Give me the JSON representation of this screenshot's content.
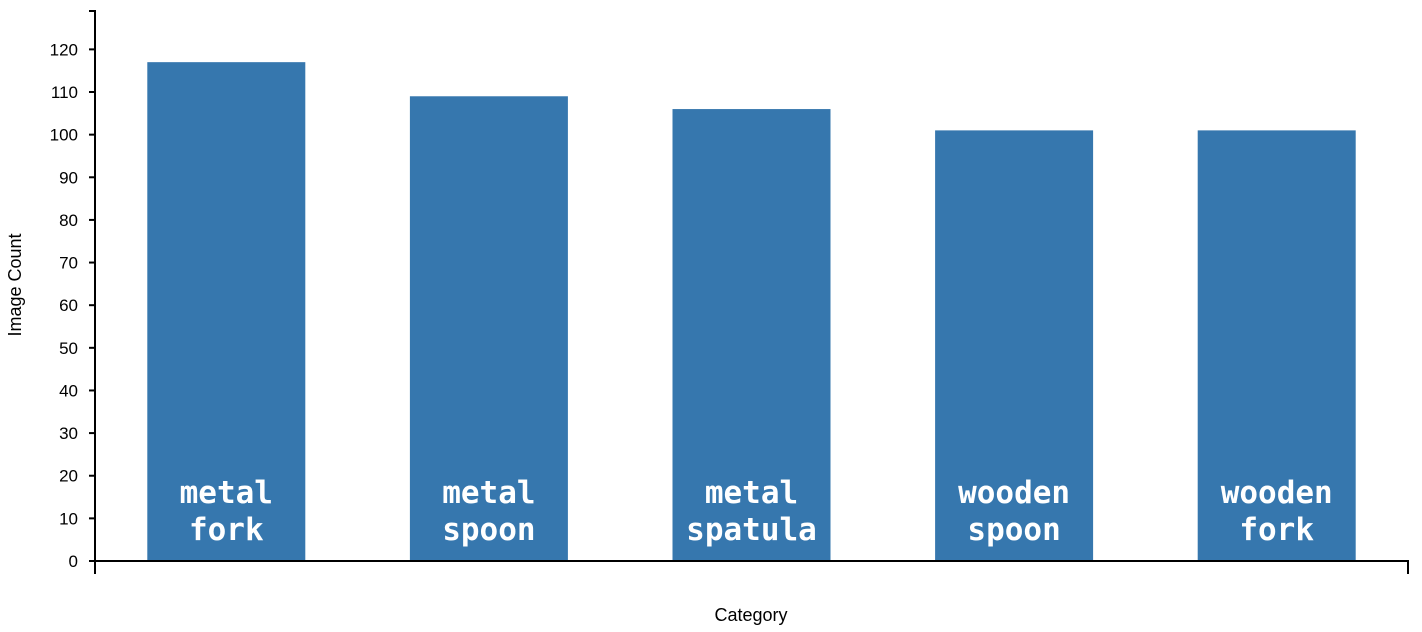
{
  "chart_data": {
    "type": "bar",
    "categories": [
      "metal fork",
      "metal spoon",
      "metal spatula",
      "wooden spoon",
      "wooden fork"
    ],
    "category_lines": [
      [
        "metal",
        "fork"
      ],
      [
        "metal",
        "spoon"
      ],
      [
        "metal",
        "spatula"
      ],
      [
        "wooden",
        "spoon"
      ],
      [
        "wooden",
        "fork"
      ]
    ],
    "values": [
      117,
      109,
      106,
      101,
      101
    ],
    "xlabel": "Category",
    "ylabel": "Image Count",
    "ylim": [
      0,
      129
    ],
    "yticks": [
      0,
      10,
      20,
      30,
      40,
      50,
      60,
      70,
      80,
      90,
      100,
      110,
      120
    ],
    "bar_color": "#3677ae",
    "grid": false,
    "legend": "none"
  }
}
